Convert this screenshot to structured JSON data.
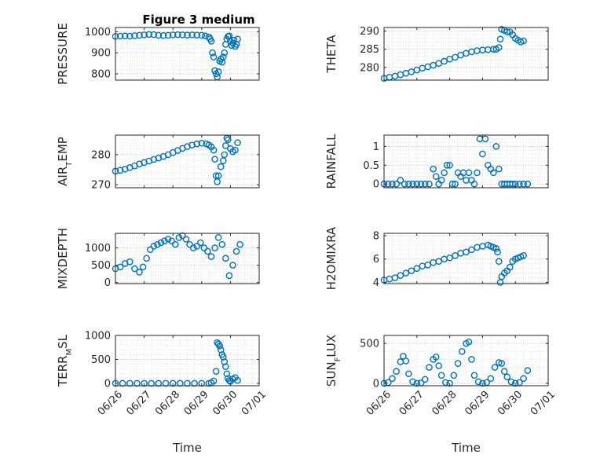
{
  "figure": {
    "title": "Figure 3 medium"
  },
  "chart_data": [
    {
      "type": "scatter",
      "panel": "top-left",
      "title": "Figure 3 medium",
      "ylabel": {
        "base": "PRESSURE"
      },
      "xlabel": "",
      "xlim": [
        "06/26",
        "07/01"
      ],
      "ylim": [
        770,
        1020
      ],
      "yticks": [
        {
          "v": 800,
          "label": "800"
        },
        {
          "v": 900,
          "label": "900"
        },
        {
          "v": 1000,
          "label": "1000"
        }
      ],
      "xticks": [],
      "marker_color": "#0072BD",
      "grid": "dotted",
      "box": true,
      "x": [
        "06/26 00:00",
        "06/26 04:00",
        "06/26 08:00",
        "06/26 12:00",
        "06/26 16:00",
        "06/26 20:00",
        "06/27 00:00",
        "06/27 04:00",
        "06/27 08:00",
        "06/27 12:00",
        "06/27 16:00",
        "06/27 20:00",
        "06/28 00:00",
        "06/28 04:00",
        "06/28 08:00",
        "06/28 12:00",
        "06/28 16:00",
        "06/28 20:00",
        "06/29 00:00",
        "06/29 03:00",
        "06/29 06:00",
        "06/29 07:00",
        "06/29 08:00",
        "06/29 09:00",
        "06/29 10:00",
        "06/29 11:00",
        "06/29 12:00",
        "06/29 13:00",
        "06/29 14:00",
        "06/29 15:00",
        "06/29 16:00",
        "06/29 17:00",
        "06/29 18:00",
        "06/29 19:00",
        "06/29 20:00",
        "06/29 21:00",
        "06/29 22:00",
        "06/29 23:00",
        "06/30 00:00",
        "06/30 01:00",
        "06/30 02:00",
        "06/30 03:00",
        "06/30 04:00",
        "06/30 05:00",
        "06/30 06:00"
      ],
      "y": [
        978,
        979,
        980,
        979,
        981,
        983,
        985,
        987,
        986,
        983,
        982,
        983,
        985,
        986,
        985,
        984,
        985,
        984,
        983,
        980,
        975,
        966,
        955,
        900,
        880,
        815,
        800,
        785,
        810,
        860,
        870,
        855,
        880,
        900,
        940,
        965,
        978,
        980,
        955,
        935,
        945,
        960,
        930,
        940,
        965
      ]
    },
    {
      "type": "scatter",
      "panel": "top-right",
      "ylabel": {
        "base": "THETA"
      },
      "xlabel": "",
      "xlim": [
        "06/26",
        "07/01"
      ],
      "ylim": [
        276.5,
        291
      ],
      "yticks": [
        {
          "v": 280,
          "label": "280"
        },
        {
          "v": 285,
          "label": "285"
        },
        {
          "v": 290,
          "label": "290"
        }
      ],
      "xticks": [],
      "marker_color": "#0072BD",
      "grid": "dotted",
      "box": true,
      "x": [
        "06/26 00:00",
        "06/26 04:00",
        "06/26 08:00",
        "06/26 12:00",
        "06/26 16:00",
        "06/26 20:00",
        "06/27 00:00",
        "06/27 04:00",
        "06/27 08:00",
        "06/27 12:00",
        "06/27 16:00",
        "06/27 20:00",
        "06/28 00:00",
        "06/28 04:00",
        "06/28 08:00",
        "06/28 12:00",
        "06/28 16:00",
        "06/28 20:00",
        "06/29 00:00",
        "06/29 04:00",
        "06/29 08:00",
        "06/29 10:00",
        "06/29 12:00",
        "06/29 13:00",
        "06/29 14:00",
        "06/29 16:00",
        "06/29 18:00",
        "06/29 20:00",
        "06/29 22:00",
        "06/30 00:00",
        "06/30 02:00",
        "06/30 04:00",
        "06/30 06:00"
      ],
      "y": [
        277,
        277.3,
        277.6,
        278,
        278.4,
        278.8,
        279.3,
        279.8,
        280.2,
        280.6,
        281.1,
        281.7,
        282.3,
        282.8,
        283.4,
        283.9,
        284.3,
        284.6,
        284.8,
        284.9,
        285,
        285,
        285.5,
        287.8,
        290.5,
        290.2,
        289.8,
        289.8,
        289,
        288,
        287.5,
        287,
        287.3
      ]
    },
    {
      "type": "scatter",
      "panel": "second-left",
      "ylabel": {
        "base": "AIR",
        "sub": "T",
        "rest": "EMP"
      },
      "xlabel": "",
      "xlim": [
        "06/26",
        "07/01"
      ],
      "ylim": [
        269,
        286.5
      ],
      "yticks": [
        {
          "v": 270,
          "label": "270"
        },
        {
          "v": 280,
          "label": "280"
        }
      ],
      "xticks": [],
      "marker_color": "#0072BD",
      "grid": "dotted",
      "box": true,
      "x": [
        "06/26 00:00",
        "06/26 04:00",
        "06/26 08:00",
        "06/26 12:00",
        "06/26 16:00",
        "06/26 20:00",
        "06/27 00:00",
        "06/27 04:00",
        "06/27 08:00",
        "06/27 12:00",
        "06/27 16:00",
        "06/27 20:00",
        "06/28 00:00",
        "06/28 04:00",
        "06/28 08:00",
        "06/28 12:00",
        "06/28 16:00",
        "06/28 20:00",
        "06/29 00:00",
        "06/29 04:00",
        "06/29 06:00",
        "06/29 08:00",
        "06/29 10:00",
        "06/29 11:00",
        "06/29 12:00",
        "06/29 13:00",
        "06/29 14:00",
        "06/29 16:00",
        "06/29 18:00",
        "06/29 19:00",
        "06/29 20:00",
        "06/29 21:00",
        "06/29 22:00",
        "06/30 00:00",
        "06/30 02:00",
        "06/30 04:00",
        "06/30 06:00"
      ],
      "y": [
        274.5,
        274.8,
        275.2,
        275.7,
        276.3,
        276.9,
        277.4,
        277.9,
        278.4,
        278.9,
        279.4,
        280,
        280.7,
        281.4,
        282.1,
        282.7,
        283.2,
        283.6,
        283.8,
        283.6,
        283.2,
        282.6,
        281.5,
        278.5,
        273,
        271,
        273,
        276,
        278,
        280,
        283,
        285.5,
        285,
        282,
        281,
        281.5,
        284
      ]
    },
    {
      "type": "scatter",
      "panel": "second-right",
      "ylabel": {
        "base": "RAINFALL"
      },
      "xlabel": "",
      "xlim": [
        "06/26",
        "07/01"
      ],
      "ylim": [
        -0.1,
        1.3
      ],
      "yticks": [
        {
          "v": 0,
          "label": "0"
        },
        {
          "v": 0.5,
          "label": "0.5"
        },
        {
          "v": 1,
          "label": "1"
        }
      ],
      "xticks": [],
      "marker_color": "#0072BD",
      "grid": "dotted",
      "box": true,
      "x": [
        "06/26 00:00",
        "06/26 03:00",
        "06/26 06:00",
        "06/26 09:00",
        "06/26 12:00",
        "06/26 15:00",
        "06/26 18:00",
        "06/26 21:00",
        "06/27 00:00",
        "06/27 03:00",
        "06/27 06:00",
        "06/27 09:00",
        "06/27 12:00",
        "06/27 14:00",
        "06/27 16:00",
        "06/27 18:00",
        "06/27 20:00",
        "06/27 22:00",
        "06/28 00:00",
        "06/28 02:00",
        "06/28 04:00",
        "06/28 06:00",
        "06/28 08:00",
        "06/28 10:00",
        "06/28 12:00",
        "06/28 14:00",
        "06/28 16:00",
        "06/28 18:00",
        "06/28 20:00",
        "06/28 22:00",
        "06/29 00:00",
        "06/29 02:00",
        "06/29 04:00",
        "06/29 06:00",
        "06/29 08:00",
        "06/29 10:00",
        "06/29 12:00",
        "06/29 14:00",
        "06/29 16:00",
        "06/29 18:00",
        "06/29 20:00",
        "06/29 22:00",
        "06/30 00:00",
        "06/30 03:00",
        "06/30 06:00",
        "06/30 09:00"
      ],
      "y": [
        0,
        0,
        0,
        0,
        0.1,
        0,
        0,
        0,
        0,
        0,
        0,
        0,
        0.4,
        0.2,
        0,
        0.1,
        0.3,
        0.5,
        0.5,
        0,
        0,
        0.3,
        0.2,
        0.3,
        0.1,
        0.3,
        0.1,
        0,
        0.3,
        1.2,
        0.8,
        1.2,
        0.5,
        0.4,
        0.3,
        1,
        0.4,
        0,
        0,
        0,
        0,
        0,
        0,
        0,
        0,
        0
      ]
    },
    {
      "type": "scatter",
      "panel": "third-left",
      "ylabel": {
        "base": "MIXDEPTH"
      },
      "xlabel": "",
      "xlim": [
        "06/26",
        "07/01"
      ],
      "ylim": [
        -30,
        1420
      ],
      "yticks": [
        {
          "v": 0,
          "label": "0"
        },
        {
          "v": 500,
          "label": "500"
        },
        {
          "v": 1000,
          "label": "1000"
        }
      ],
      "xticks": [],
      "marker_color": "#0072BD",
      "grid": "dotted",
      "box": true,
      "x": [
        "06/26 00:00",
        "06/26 04:00",
        "06/26 08:00",
        "06/26 12:00",
        "06/26 16:00",
        "06/26 20:00",
        "06/26 23:00",
        "06/27 02:00",
        "06/27 05:00",
        "06/27 08:00",
        "06/27 11:00",
        "06/27 14:00",
        "06/27 17:00",
        "06/27 20:00",
        "06/27 23:00",
        "06/28 02:00",
        "06/28 05:00",
        "06/28 08:00",
        "06/28 11:00",
        "06/28 14:00",
        "06/28 17:00",
        "06/28 20:00",
        "06/28 23:00",
        "06/29 02:00",
        "06/29 05:00",
        "06/29 08:00",
        "06/29 11:00",
        "06/29 14:00",
        "06/29 17:00",
        "06/29 20:00",
        "06/29 23:00",
        "06/30 02:00",
        "06/30 05:00",
        "06/30 08:00"
      ],
      "y": [
        400,
        450,
        550,
        600,
        400,
        300,
        450,
        700,
        950,
        1050,
        1100,
        1150,
        1200,
        1250,
        1200,
        1100,
        1300,
        1350,
        1250,
        1100,
        1000,
        1050,
        1150,
        1000,
        900,
        750,
        1000,
        1300,
        1100,
        700,
        200,
        500,
        900,
        1100
      ]
    },
    {
      "type": "scatter",
      "panel": "third-right",
      "ylabel": {
        "base": "H2OMIXRA"
      },
      "xlabel": "",
      "xlim": [
        "06/26",
        "07/01"
      ],
      "ylim": [
        3.9,
        8.2
      ],
      "yticks": [
        {
          "v": 4,
          "label": "4"
        },
        {
          "v": 6,
          "label": "6"
        },
        {
          "v": 8,
          "label": "8"
        }
      ],
      "xticks": [],
      "marker_color": "#0072BD",
      "grid": "dotted",
      "box": true,
      "x": [
        "06/26 00:00",
        "06/26 04:00",
        "06/26 08:00",
        "06/26 12:00",
        "06/26 16:00",
        "06/26 20:00",
        "06/27 00:00",
        "06/27 04:00",
        "06/27 08:00",
        "06/27 12:00",
        "06/27 16:00",
        "06/27 20:00",
        "06/28 00:00",
        "06/28 04:00",
        "06/28 08:00",
        "06/28 12:00",
        "06/28 16:00",
        "06/28 20:00",
        "06/29 00:00",
        "06/29 04:00",
        "06/29 06:00",
        "06/29 08:00",
        "06/29 10:00",
        "06/29 11:00",
        "06/29 12:00",
        "06/29 13:00",
        "06/29 14:00",
        "06/29 16:00",
        "06/29 18:00",
        "06/29 20:00",
        "06/29 22:00",
        "06/30 00:00",
        "06/30 02:00",
        "06/30 04:00",
        "06/30 06:00"
      ],
      "y": [
        4.2,
        4.3,
        4.4,
        4.6,
        4.8,
        5,
        5.2,
        5.4,
        5.5,
        5.7,
        5.8,
        6,
        6.1,
        6.3,
        6.5,
        6.6,
        6.8,
        7,
        7.1,
        7.2,
        7.1,
        7,
        6.9,
        6.6,
        5.8,
        4,
        4.5,
        4.8,
        5,
        5.3,
        5.8,
        6,
        6.1,
        6.2,
        6.3
      ]
    },
    {
      "type": "scatter",
      "panel": "bottom-left",
      "ylabel": {
        "base": "TERR",
        "sub": "M",
        "rest": "SL"
      },
      "xlabel": "Time",
      "xlim": [
        "06/26",
        "07/01"
      ],
      "ylim": [
        -50,
        1000
      ],
      "yticks": [
        {
          "v": 0,
          "label": "0"
        },
        {
          "v": 500,
          "label": "500"
        },
        {
          "v": 1000,
          "label": "1000"
        }
      ],
      "xticks": [
        "06/26",
        "06/27",
        "06/28",
        "06/29",
        "06/30",
        "07/01"
      ],
      "marker_color": "#0072BD",
      "grid": "dotted",
      "box": true,
      "x": [
        "06/26 00:00",
        "06/26 06:00",
        "06/26 12:00",
        "06/26 18:00",
        "06/27 00:00",
        "06/27 06:00",
        "06/27 12:00",
        "06/27 18:00",
        "06/28 00:00",
        "06/28 06:00",
        "06/28 12:00",
        "06/28 18:00",
        "06/29 00:00",
        "06/29 06:00",
        "06/29 08:00",
        "06/29 10:00",
        "06/29 12:00",
        "06/29 13:00",
        "06/29 14:00",
        "06/29 15:00",
        "06/29 16:00",
        "06/29 17:00",
        "06/29 18:00",
        "06/29 19:00",
        "06/29 20:00",
        "06/29 21:00",
        "06/29 22:00",
        "06/29 23:00",
        "06/30 00:00",
        "06/30 02:00",
        "06/30 04:00",
        "06/30 06:00"
      ],
      "y": [
        0,
        0,
        0,
        0,
        0,
        0,
        0,
        0,
        0,
        0,
        0,
        0,
        0,
        0,
        10,
        50,
        250,
        850,
        820,
        780,
        700,
        600,
        550,
        450,
        350,
        200,
        100,
        60,
        40,
        90,
        120,
        60
      ]
    },
    {
      "type": "scatter",
      "panel": "bottom-right",
      "ylabel": {
        "base": "SUN",
        "sub": "F",
        "rest": "LUX"
      },
      "xlabel": "Time",
      "xlim": [
        "06/26",
        "07/01"
      ],
      "ylim": [
        -30,
        600
      ],
      "yticks": [
        {
          "v": 0,
          "label": "0"
        },
        {
          "v": 500,
          "label": "500"
        }
      ],
      "xticks": [
        "06/26",
        "06/27",
        "06/28",
        "06/29",
        "06/30",
        "07/01"
      ],
      "marker_color": "#0072BD",
      "grid": "dotted",
      "box": true,
      "x": [
        "06/26 00:00",
        "06/26 03:00",
        "06/26 06:00",
        "06/26 09:00",
        "06/26 12:00",
        "06/26 14:00",
        "06/26 16:00",
        "06/26 18:00",
        "06/26 21:00",
        "06/27 00:00",
        "06/27 03:00",
        "06/27 06:00",
        "06/27 09:00",
        "06/27 12:00",
        "06/27 14:00",
        "06/27 16:00",
        "06/27 18:00",
        "06/27 21:00",
        "06/28 00:00",
        "06/28 03:00",
        "06/28 06:00",
        "06/28 09:00",
        "06/28 12:00",
        "06/28 14:00",
        "06/28 16:00",
        "06/28 18:00",
        "06/28 21:00",
        "06/29 00:00",
        "06/29 03:00",
        "06/29 06:00",
        "06/29 09:00",
        "06/29 12:00",
        "06/29 14:00",
        "06/29 16:00",
        "06/29 18:00",
        "06/29 21:00",
        "06/30 00:00",
        "06/30 03:00",
        "06/30 06:00",
        "06/30 09:00"
      ],
      "y": [
        0,
        10,
        60,
        150,
        270,
        340,
        280,
        120,
        20,
        0,
        5,
        50,
        200,
        300,
        330,
        220,
        100,
        10,
        0,
        100,
        250,
        400,
        500,
        520,
        300,
        100,
        20,
        0,
        10,
        60,
        200,
        260,
        250,
        150,
        80,
        20,
        0,
        10,
        60,
        160
      ]
    }
  ]
}
